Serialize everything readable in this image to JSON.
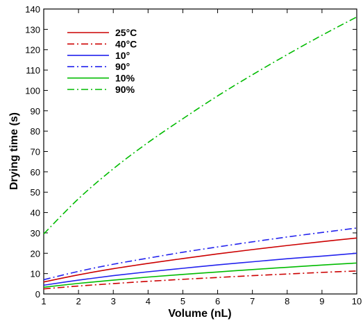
{
  "chart_data": {
    "type": "line",
    "title": "",
    "xlabel": "Volume (nL)",
    "ylabel": "Drying time (s)",
    "xlim": [
      1,
      10
    ],
    "ylim": [
      0,
      140
    ],
    "xticks": [
      "1",
      "2",
      "3",
      "4",
      "5",
      "6",
      "7",
      "8",
      "9",
      "10"
    ],
    "yticks": [
      "0",
      "10",
      "20",
      "30",
      "40",
      "50",
      "60",
      "70",
      "80",
      "90",
      "100",
      "110",
      "120",
      "130",
      "140"
    ],
    "grid": false,
    "legend_position": "top-left",
    "x": [
      1,
      2,
      3,
      4,
      5,
      6,
      7,
      8,
      9,
      10
    ],
    "series": [
      {
        "name": "25°C",
        "color": "#cc0000",
        "dash": "solid",
        "values": [
          5.9,
          9.4,
          12.4,
          15.0,
          17.4,
          19.7,
          21.8,
          23.8,
          25.7,
          27.5
        ]
      },
      {
        "name": "40°C",
        "color": "#cc0000",
        "dash": "dashdot",
        "values": [
          2.5,
          3.9,
          5.1,
          6.2,
          7.2,
          8.1,
          9.0,
          9.8,
          10.6,
          11.3
        ]
      },
      {
        "name": "10°",
        "color": "#2222ee",
        "dash": "solid",
        "values": [
          4.3,
          6.8,
          9.0,
          10.9,
          12.6,
          14.3,
          15.8,
          17.3,
          18.6,
          20.0
        ]
      },
      {
        "name": "90°",
        "color": "#2222ee",
        "dash": "dashdot",
        "values": [
          7.0,
          11.1,
          14.6,
          17.6,
          20.5,
          23.1,
          25.6,
          28.0,
          30.2,
          32.4
        ]
      },
      {
        "name": "10%",
        "color": "#00bb00",
        "dash": "solid",
        "values": [
          3.3,
          5.2,
          6.8,
          8.3,
          9.6,
          10.8,
          12.0,
          13.1,
          14.2,
          15.2
        ]
      },
      {
        "name": "90%",
        "color": "#00bb00",
        "dash": "dashdot",
        "values": [
          29.5,
          46.8,
          61.5,
          74.4,
          86.1,
          97.3,
          107.7,
          117.6,
          127.1,
          136.1
        ]
      }
    ]
  }
}
